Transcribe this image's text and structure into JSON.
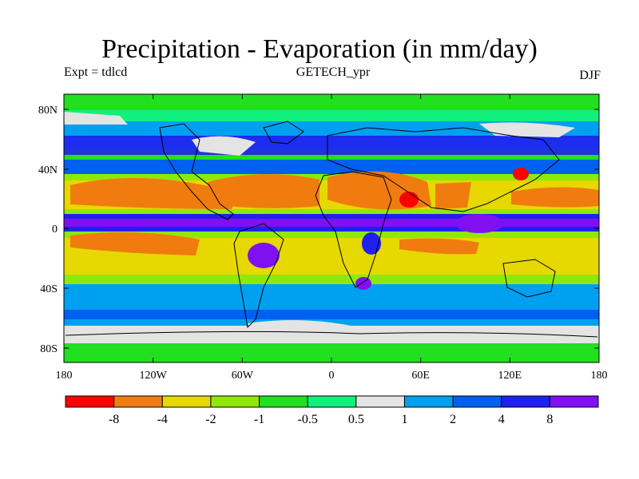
{
  "title": "Precipitation - Evaporation (in mm/day)",
  "left_label": "Expt = tdlcd",
  "center_label": "GETECH_ypr",
  "right_label": "DJF",
  "lat_ticks": [
    "80N",
    "40N",
    "0",
    "40S",
    "80S"
  ],
  "lon_ticks": [
    "180",
    "120W",
    "60W",
    "0",
    "60E",
    "120E",
    "180"
  ],
  "colorbar": {
    "colors": [
      "#ff0000",
      "#f07c10",
      "#e6d800",
      "#90e80a",
      "#20e020",
      "#10f07c",
      "#e4e4e4",
      "#00a0f0",
      "#0060f0",
      "#2020f0",
      "#8010f0"
    ],
    "labels": [
      "-8",
      "-4",
      "-2",
      "-1",
      "-0.5",
      "0.5",
      "1",
      "2",
      "4",
      "8"
    ]
  }
}
